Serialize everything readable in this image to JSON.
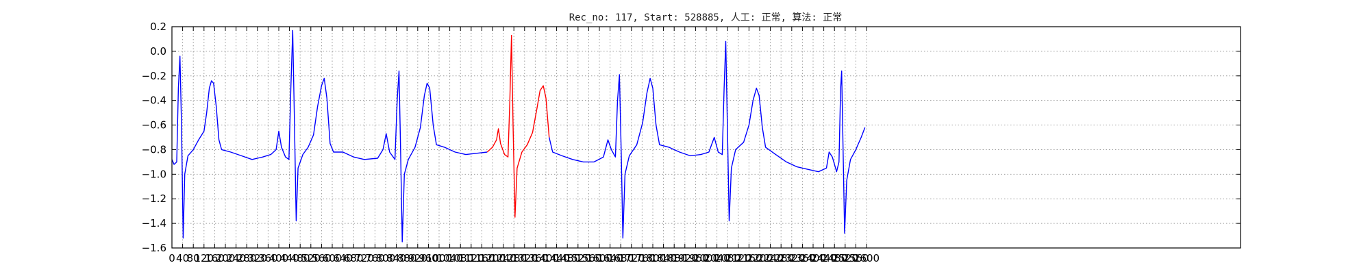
{
  "chart_data": {
    "type": "line",
    "title": "Rec_no: 117, Start: 528885, 人工: 正常, 算法: 正常",
    "xlabel": "",
    "ylabel": "",
    "xlim": [
      0,
      4000
    ],
    "ylim": [
      -1.6,
      0.2
    ],
    "yticks": [
      0.2,
      0.0,
      -0.2,
      -0.4,
      -0.6,
      -0.8,
      -1.0,
      -1.2,
      -1.4,
      -1.6
    ],
    "ytick_labels": [
      "0.2",
      "0.0",
      "−0.2",
      "−0.4",
      "−0.6",
      "−0.8",
      "−1.0",
      "−1.2",
      "−1.4",
      "−1.6"
    ],
    "xtick_step": 40,
    "xtick_last": 2600,
    "xtick_labels": [
      "0",
      "40",
      "80",
      "120",
      "160",
      "200",
      "240",
      "280",
      "320",
      "360",
      "400",
      "440",
      "480",
      "520",
      "560",
      "600",
      "640",
      "680",
      "720",
      "760",
      "800",
      "840",
      "880",
      "920",
      "960",
      "1000",
      "1040",
      "1080",
      "1120",
      "1160",
      "1200",
      "1240",
      "1280",
      "1320",
      "1360",
      "1400",
      "1440",
      "1480",
      "1520",
      "1560",
      "1600",
      "1640",
      "1680",
      "1720",
      "1760",
      "1800",
      "1840",
      "1880",
      "1920",
      "1960",
      "2000",
      "2040",
      "2080",
      "2120",
      "2160",
      "2200",
      "2240",
      "2280",
      "2320",
      "2360",
      "2400",
      "2440",
      "2480",
      "2520",
      "2560",
      "2600"
    ],
    "grid": true,
    "series": [
      {
        "color": "#0000ff",
        "points": [
          [
            0,
            -0.88
          ],
          [
            8,
            -0.92
          ],
          [
            18,
            -0.9
          ],
          [
            24,
            -0.3
          ],
          [
            30,
            -0.04
          ],
          [
            36,
            -0.6
          ],
          [
            42,
            -1.52
          ],
          [
            48,
            -1.0
          ],
          [
            60,
            -0.85
          ],
          [
            80,
            -0.8
          ],
          [
            100,
            -0.72
          ],
          [
            120,
            -0.65
          ],
          [
            130,
            -0.5
          ],
          [
            140,
            -0.3
          ],
          [
            148,
            -0.24
          ],
          [
            156,
            -0.26
          ],
          [
            166,
            -0.45
          ],
          [
            176,
            -0.72
          ],
          [
            186,
            -0.8
          ],
          [
            220,
            -0.82
          ],
          [
            260,
            -0.85
          ],
          [
            300,
            -0.88
          ],
          [
            340,
            -0.86
          ],
          [
            370,
            -0.84
          ],
          [
            390,
            -0.8
          ],
          [
            400,
            -0.65
          ],
          [
            410,
            -0.78
          ],
          [
            425,
            -0.86
          ],
          [
            438,
            -0.88
          ],
          [
            445,
            -0.3
          ],
          [
            452,
            0.17
          ],
          [
            458,
            -0.5
          ],
          [
            465,
            -1.38
          ],
          [
            472,
            -0.95
          ],
          [
            490,
            -0.84
          ],
          [
            510,
            -0.78
          ],
          [
            530,
            -0.68
          ],
          [
            545,
            -0.45
          ],
          [
            560,
            -0.28
          ],
          [
            570,
            -0.22
          ],
          [
            580,
            -0.38
          ],
          [
            592,
            -0.75
          ],
          [
            605,
            -0.82
          ],
          [
            640,
            -0.82
          ],
          [
            680,
            -0.86
          ],
          [
            720,
            -0.88
          ],
          [
            770,
            -0.87
          ],
          [
            790,
            -0.8
          ],
          [
            802,
            -0.67
          ],
          [
            815,
            -0.82
          ],
          [
            835,
            -0.88
          ],
          [
            843,
            -0.4
          ],
          [
            850,
            -0.16
          ],
          [
            856,
            -0.8
          ],
          [
            862,
            -1.55
          ],
          [
            870,
            -1.0
          ],
          [
            885,
            -0.88
          ],
          [
            910,
            -0.78
          ],
          [
            930,
            -0.62
          ],
          [
            945,
            -0.36
          ],
          [
            955,
            -0.26
          ],
          [
            965,
            -0.3
          ],
          [
            978,
            -0.6
          ],
          [
            990,
            -0.76
          ],
          [
            1020,
            -0.78
          ],
          [
            1060,
            -0.82
          ],
          [
            1100,
            -0.84
          ],
          [
            1140,
            -0.83
          ],
          [
            1180,
            -0.82
          ]
        ]
      },
      {
        "color": "#ff0000",
        "points": [
          [
            1180,
            -0.82
          ],
          [
            1200,
            -0.78
          ],
          [
            1215,
            -0.72
          ],
          [
            1222,
            -0.63
          ],
          [
            1230,
            -0.75
          ],
          [
            1245,
            -0.84
          ],
          [
            1258,
            -0.86
          ],
          [
            1265,
            -0.4
          ],
          [
            1271,
            0.13
          ],
          [
            1277,
            -0.6
          ],
          [
            1284,
            -1.35
          ],
          [
            1292,
            -0.95
          ],
          [
            1310,
            -0.82
          ],
          [
            1330,
            -0.76
          ],
          [
            1350,
            -0.66
          ],
          [
            1365,
            -0.48
          ],
          [
            1378,
            -0.32
          ],
          [
            1390,
            -0.28
          ],
          [
            1400,
            -0.38
          ],
          [
            1412,
            -0.7
          ]
        ]
      },
      {
        "color": "#0000ff",
        "points": [
          [
            1412,
            -0.7
          ],
          [
            1425,
            -0.82
          ],
          [
            1460,
            -0.85
          ],
          [
            1500,
            -0.88
          ],
          [
            1540,
            -0.9
          ],
          [
            1580,
            -0.9
          ],
          [
            1615,
            -0.86
          ],
          [
            1632,
            -0.72
          ],
          [
            1645,
            -0.8
          ],
          [
            1660,
            -0.86
          ],
          [
            1668,
            -0.4
          ],
          [
            1675,
            -0.19
          ],
          [
            1682,
            -0.85
          ],
          [
            1688,
            -1.52
          ],
          [
            1696,
            -1.0
          ],
          [
            1712,
            -0.85
          ],
          [
            1740,
            -0.76
          ],
          [
            1762,
            -0.58
          ],
          [
            1778,
            -0.34
          ],
          [
            1790,
            -0.22
          ],
          [
            1800,
            -0.3
          ],
          [
            1812,
            -0.6
          ],
          [
            1825,
            -0.76
          ],
          [
            1860,
            -0.78
          ],
          [
            1900,
            -0.82
          ],
          [
            1940,
            -0.85
          ],
          [
            1980,
            -0.84
          ],
          [
            2010,
            -0.82
          ],
          [
            2030,
            -0.7
          ],
          [
            2045,
            -0.82
          ],
          [
            2060,
            -0.84
          ],
          [
            2067,
            -0.3
          ],
          [
            2073,
            0.08
          ],
          [
            2080,
            -0.7
          ],
          [
            2086,
            -1.38
          ],
          [
            2094,
            -0.95
          ],
          [
            2110,
            -0.8
          ],
          [
            2140,
            -0.74
          ],
          [
            2160,
            -0.6
          ],
          [
            2175,
            -0.4
          ],
          [
            2188,
            -0.3
          ],
          [
            2198,
            -0.36
          ],
          [
            2210,
            -0.62
          ],
          [
            2222,
            -0.78
          ],
          [
            2260,
            -0.84
          ],
          [
            2300,
            -0.9
          ],
          [
            2340,
            -0.94
          ],
          [
            2380,
            -0.96
          ],
          [
            2420,
            -0.98
          ],
          [
            2450,
            -0.95
          ],
          [
            2460,
            -0.82
          ],
          [
            2472,
            -0.86
          ],
          [
            2488,
            -0.98
          ],
          [
            2497,
            -0.9
          ],
          [
            2503,
            -0.3
          ],
          [
            2507,
            -0.16
          ],
          [
            2513,
            -0.9
          ],
          [
            2518,
            -1.48
          ],
          [
            2526,
            -1.05
          ],
          [
            2540,
            -0.88
          ],
          [
            2560,
            -0.8
          ],
          [
            2580,
            -0.7
          ],
          [
            2594,
            -0.62
          ]
        ]
      }
    ]
  }
}
